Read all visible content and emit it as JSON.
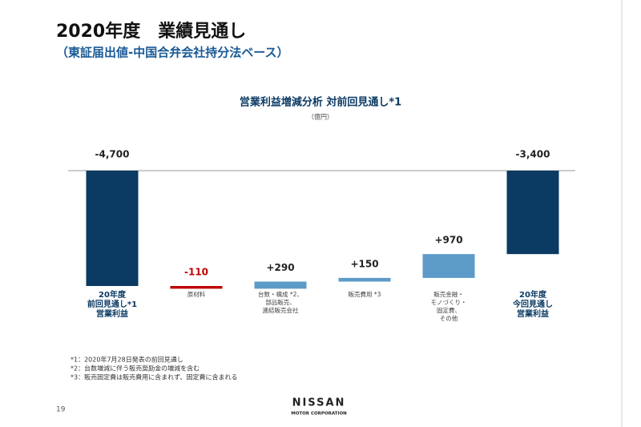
{
  "header": {
    "title": "2020年度　業績見通し",
    "subtitle": "（東証届出値-中国合弁会社持分法ベース）"
  },
  "chart_data": {
    "type": "waterfall",
    "title": "営業利益増減分析 対前回見通し*1",
    "unit": "（億円）",
    "categories": [
      [
        "20年度",
        "前回見通し*1",
        "営業利益"
      ],
      [
        "原材料"
      ],
      [
        "台数・構成 *2、",
        "部品販売、",
        "連結販売会社"
      ],
      [
        "販売費用 *3"
      ],
      [
        "販売金融・",
        "モノづくり・",
        "固定費、",
        "その他"
      ],
      [
        "20年度",
        "今回見通し",
        "営業利益"
      ]
    ],
    "measure": [
      "total",
      "relative",
      "relative",
      "relative",
      "relative",
      "total"
    ],
    "values": [
      -4700,
      -110,
      290,
      150,
      970,
      -3400
    ],
    "value_labels": [
      "-4,700",
      "-110",
      "+290",
      "+150",
      "+970",
      "-3,400"
    ],
    "colors": [
      "#0b3a63",
      "#c00000",
      "#5c9bc8",
      "#5c9bc8",
      "#5c9bc8",
      "#0b3a63"
    ],
    "label_colors": [
      "#222222",
      "#c00000",
      "#222222",
      "#222222",
      "#222222",
      "#222222"
    ],
    "ylim": [
      -5000,
      0
    ]
  },
  "footnotes": [
    "*1：2020年7月28日発表の前回見通し",
    "*2：台数増減に伴う販売奨励金の増減を含む",
    "*3：販売固定費は販売費用に含まれず、固定費に含まれる"
  ],
  "page_number": "19",
  "logo": {
    "name": "NISSAN",
    "tagline": "MOTOR CORPORATION"
  }
}
